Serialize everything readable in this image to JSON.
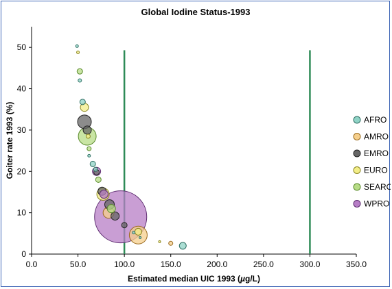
{
  "chart_data": {
    "type": "scatter",
    "title": "Global Iodine Status-1993",
    "xlabel_prefix": "Estimated median UIC 1993 (",
    "xlabel_mu": "µ",
    "xlabel_suffix": "g/L)",
    "ylabel": "Goiter rate 1993 (%)",
    "xlim": [
      0,
      350
    ],
    "ylim": [
      0,
      55
    ],
    "xticks": [
      "0.0",
      "50.0",
      "100.0",
      "150.0",
      "200.0",
      "250.0",
      "300.0",
      "350.0"
    ],
    "yticks": [
      "0",
      "10",
      "20",
      "30",
      "40",
      "50"
    ],
    "reference_lines": [
      100,
      300
    ],
    "reference_line_color": "#2e8b57",
    "legend_position": "right",
    "series": [
      {
        "name": "AFRO",
        "color": "#8fd3c6",
        "edge": "#2f6f63",
        "points": [
          {
            "x": 49,
            "y": 50.3,
            "s": 2
          },
          {
            "x": 52,
            "y": 42,
            "s": 2.5
          },
          {
            "x": 55,
            "y": 36.8,
            "s": 4
          },
          {
            "x": 62,
            "y": 23.8,
            "s": 2
          },
          {
            "x": 66,
            "y": 21.8,
            "s": 4
          },
          {
            "x": 69,
            "y": 20.5,
            "s": 3
          },
          {
            "x": 110,
            "y": 5.2,
            "s": 2
          },
          {
            "x": 117,
            "y": 4,
            "s": 1.5
          },
          {
            "x": 163,
            "y": 2,
            "s": 5
          }
        ]
      },
      {
        "name": "AMRO",
        "color": "#f5cf8c",
        "edge": "#9a6a1e",
        "points": [
          {
            "x": 83,
            "y": 10,
            "s": 8
          },
          {
            "x": 115,
            "y": 4.6,
            "s": 13
          },
          {
            "x": 150,
            "y": 2.6,
            "s": 3
          }
        ]
      },
      {
        "name": "EMRO",
        "color": "#666666",
        "edge": "#222222",
        "points": [
          {
            "x": 57,
            "y": 32,
            "s": 10
          },
          {
            "x": 60,
            "y": 30,
            "s": 6
          },
          {
            "x": 70,
            "y": 19.8,
            "s": 4
          },
          {
            "x": 76,
            "y": 15.2,
            "s": 6
          },
          {
            "x": 84,
            "y": 12,
            "s": 7
          },
          {
            "x": 90,
            "y": 9.2,
            "s": 6
          },
          {
            "x": 100,
            "y": 7,
            "s": 4
          }
        ]
      },
      {
        "name": "EURO",
        "color": "#f3ee88",
        "edge": "#8a8520",
        "points": [
          {
            "x": 50,
            "y": 48.8,
            "s": 2
          },
          {
            "x": 57,
            "y": 35.5,
            "s": 6
          },
          {
            "x": 61,
            "y": 28.5,
            "s": 3
          },
          {
            "x": 77,
            "y": 14.5,
            "s": 9
          },
          {
            "x": 115,
            "y": 5.4,
            "s": 5
          },
          {
            "x": 138,
            "y": 3,
            "s": 1.5
          }
        ]
      },
      {
        "name": "SEARO",
        "color": "#b7dc86",
        "edge": "#5a8a2c",
        "points": [
          {
            "x": 52,
            "y": 44.2,
            "s": 4
          },
          {
            "x": 60,
            "y": 28.5,
            "s": 13
          },
          {
            "x": 62,
            "y": 25.5,
            "s": 3
          },
          {
            "x": 72,
            "y": 18,
            "s": 4
          },
          {
            "x": 86,
            "y": 11,
            "s": 6
          }
        ]
      },
      {
        "name": "WPRO",
        "color": "#b77ec6",
        "edge": "#5b2a6e",
        "points": [
          {
            "x": 70,
            "y": 20,
            "s": 6
          },
          {
            "x": 78,
            "y": 14.5,
            "s": 6
          },
          {
            "x": 96,
            "y": 9,
            "s": 38
          }
        ]
      }
    ]
  }
}
